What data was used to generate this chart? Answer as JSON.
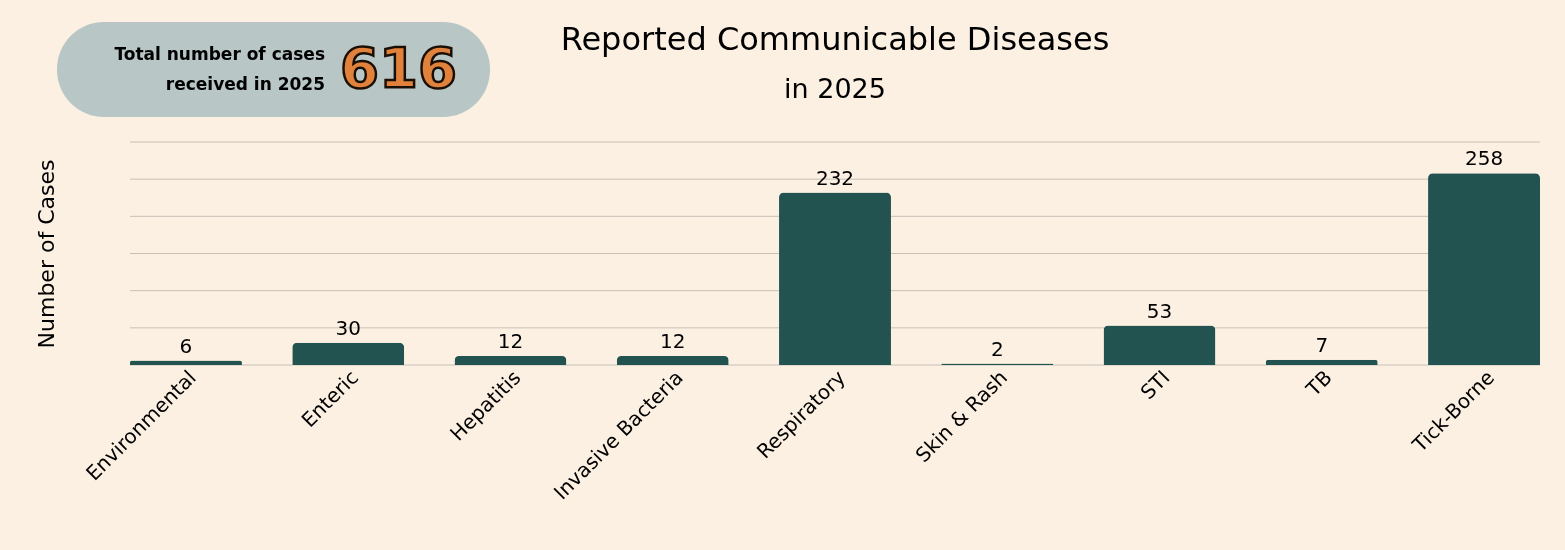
{
  "chart_data": {
    "type": "bar",
    "title": "Reported Communicable Diseases",
    "subtitle": "in 2025",
    "ylabel": "Number of Cases",
    "categories": [
      "Environmental",
      "Enteric",
      "Hepatitis",
      "Invasive Bacteria",
      "Respiratory",
      "Skin & Rash",
      "STI",
      "TB",
      "Tick-Borne"
    ],
    "values": [
      6,
      30,
      12,
      12,
      232,
      2,
      53,
      7,
      258
    ],
    "color": "#225350",
    "ylim": [
      0,
      300
    ],
    "yticks": [
      {
        "value": 0,
        "label": null
      },
      {
        "value": 50,
        "label": null
      },
      {
        "value": 100,
        "label": null
      },
      {
        "value": 150,
        "label": null
      },
      {
        "value": 200,
        "label": null
      },
      {
        "value": 250,
        "label": null
      },
      {
        "value": 300,
        "label": null
      }
    ],
    "tick_labels": "x",
    "grid": "y",
    "data_labels": true,
    "annotations": [
      "Total number of cases received in 2025",
      "616"
    ]
  }
}
